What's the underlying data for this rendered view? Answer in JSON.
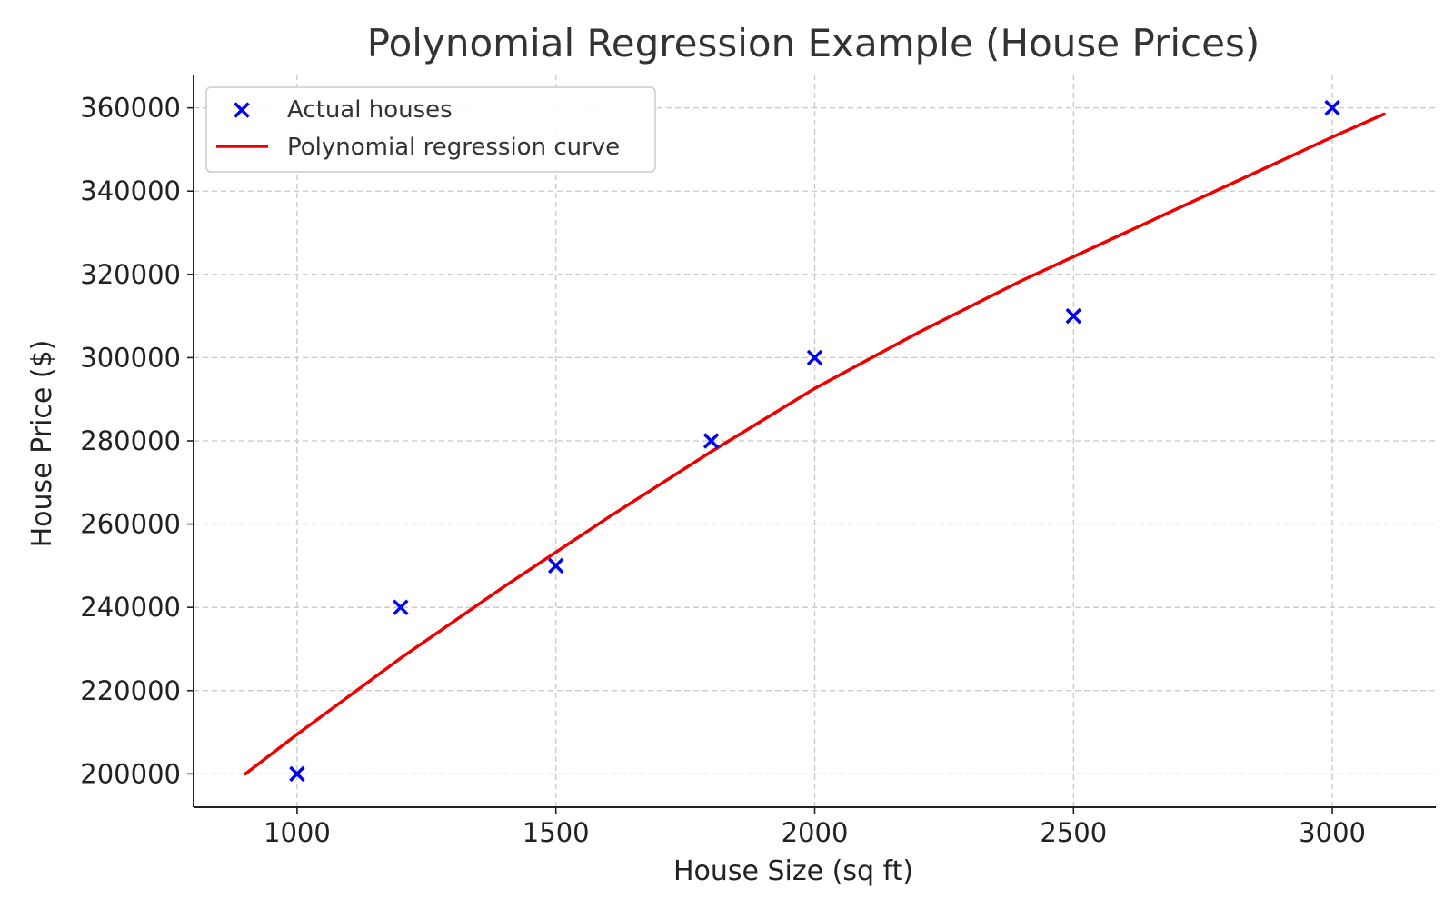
{
  "chart_data": {
    "type": "scatter",
    "title": "Polynomial Regression Example (House Prices)",
    "xlabel": "House Size (sq ft)",
    "ylabel": "House Price ($)",
    "xlim": [
      800,
      3200
    ],
    "ylim": [
      192000,
      368000
    ],
    "x_ticks": [
      1000,
      1500,
      2000,
      2500,
      3000
    ],
    "y_ticks": [
      200000,
      220000,
      240000,
      260000,
      280000,
      300000,
      320000,
      340000,
      360000
    ],
    "grid": true,
    "legend_position": "top-left",
    "series": [
      {
        "name": "Actual houses",
        "kind": "scatter",
        "marker": "x",
        "color": "#0000ee",
        "points": [
          {
            "x": 1000,
            "y": 200000
          },
          {
            "x": 1200,
            "y": 240000
          },
          {
            "x": 1500,
            "y": 250000
          },
          {
            "x": 1800,
            "y": 280000
          },
          {
            "x": 2000,
            "y": 300000
          },
          {
            "x": 2500,
            "y": 310000
          },
          {
            "x": 3000,
            "y": 360000
          }
        ]
      },
      {
        "name": "Polynomial regression curve",
        "kind": "line",
        "color": "#ee0000",
        "points": [
          {
            "x": 900,
            "y": 200000
          },
          {
            "x": 1000,
            "y": 209500
          },
          {
            "x": 1200,
            "y": 227800
          },
          {
            "x": 1400,
            "y": 245000
          },
          {
            "x": 1600,
            "y": 261500
          },
          {
            "x": 1800,
            "y": 277400
          },
          {
            "x": 2000,
            "y": 292600
          },
          {
            "x": 2200,
            "y": 306000
          },
          {
            "x": 2400,
            "y": 318500
          },
          {
            "x": 2600,
            "y": 330000
          },
          {
            "x": 2800,
            "y": 341500
          },
          {
            "x": 3000,
            "y": 353000
          },
          {
            "x": 3100,
            "y": 358500
          }
        ]
      }
    ]
  }
}
